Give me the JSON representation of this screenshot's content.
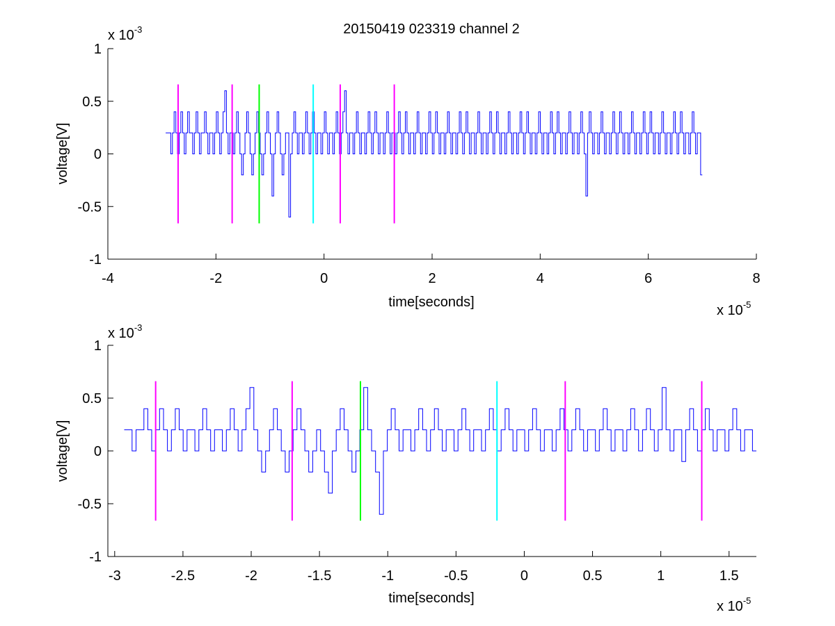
{
  "figure": {
    "title": "20150419 023319 channel 2"
  },
  "chart_data": [
    {
      "type": "line",
      "xlabel": "time[seconds]",
      "ylabel": "voltage[V]",
      "x_multiplier": "x 10",
      "x_exponent": "-5",
      "y_multiplier": "x 10",
      "y_exponent": "-3",
      "xlim": [
        -4,
        8
      ],
      "ylim": [
        -1,
        1
      ],
      "xticks": [
        -4,
        -2,
        0,
        2,
        4,
        6,
        8
      ],
      "xtick_labels": [
        "-4",
        "-2",
        "0",
        "2",
        "4",
        "6",
        "8"
      ],
      "yticks": [
        -1,
        -0.5,
        0,
        0.5,
        1
      ],
      "ytick_labels": [
        "-1",
        "-0.5",
        "0",
        "0.5",
        "1"
      ],
      "grid": false,
      "signal": {
        "color": "#0000ff",
        "x_range": [
          -2.93,
          7.0
        ],
        "values": [
          0.2,
          0.2,
          0.2,
          0.0,
          0.2,
          0.4,
          0.2,
          0.0,
          0.2,
          0.4,
          0.2,
          0.0,
          0.2,
          0.4,
          0.2,
          0.2,
          0.0,
          0.2,
          0.4,
          0.2,
          0.0,
          0.2,
          0.2,
          0.4,
          0.2,
          0.0,
          0.2,
          0.2,
          0.0,
          0.2,
          0.4,
          0.2,
          0.0,
          0.2,
          0.4,
          0.6,
          0.2,
          0.0,
          0.2,
          0.2,
          0.0,
          0.2,
          0.4,
          0.2,
          0.0,
          -0.2,
          0.0,
          0.2,
          0.4,
          0.2,
          0.0,
          -0.2,
          0.0,
          0.2,
          0.4,
          0.2,
          0.0,
          -0.2,
          0.0,
          0.2,
          0.4,
          0.2,
          0.0,
          -0.4,
          0.0,
          0.2,
          0.4,
          0.2,
          0.0,
          -0.2,
          0.0,
          0.2,
          0.2,
          -0.6,
          0.0,
          0.2,
          0.4,
          0.2,
          0.0,
          0.2,
          0.2,
          0.0,
          0.2,
          0.4,
          0.2,
          0.0,
          0.2,
          0.4,
          0.2,
          0.0,
          0.2,
          0.2,
          0.0,
          0.2,
          0.4,
          0.2,
          0.0,
          0.2,
          0.2,
          0.0,
          0.2,
          0.4,
          0.2,
          0.0,
          0.2,
          0.4,
          0.6,
          0.2,
          0.0,
          0.2,
          0.2,
          0.0,
          0.2,
          0.4,
          0.2,
          0.0,
          0.2,
          0.2,
          0.0,
          0.2,
          0.4,
          0.2,
          0.0,
          0.2,
          0.4,
          0.2,
          0.0,
          0.2,
          0.2,
          0.0,
          0.2,
          0.4,
          0.2,
          0.0,
          0.2,
          0.2,
          0.0,
          0.2,
          0.4,
          0.2,
          0.0,
          0.2,
          0.4,
          0.2,
          0.0,
          0.2,
          0.2,
          0.0,
          0.2,
          0.4,
          0.2,
          0.0,
          0.2,
          0.2,
          0.0,
          0.2,
          0.4,
          0.2,
          0.0,
          0.2,
          0.4,
          0.2,
          0.0,
          0.2,
          0.2,
          0.0,
          0.2,
          0.4,
          0.2,
          0.0,
          0.2,
          0.2,
          0.0,
          0.2,
          0.4,
          0.2,
          0.0,
          0.2,
          0.4,
          0.2,
          0.0,
          0.2,
          0.2,
          0.0,
          0.2,
          0.4,
          0.2,
          0.0,
          0.2,
          0.2,
          0.0,
          0.2,
          0.4,
          0.2,
          0.0,
          0.2,
          0.4,
          0.2,
          0.0,
          0.2,
          0.2,
          0.0,
          0.2,
          0.4,
          0.2,
          0.0,
          0.2,
          0.2,
          0.0,
          0.2,
          0.4,
          0.2,
          0.0,
          0.2,
          0.4,
          0.2,
          0.0,
          0.2,
          0.2,
          0.0,
          0.2,
          0.4,
          0.2,
          0.0,
          0.2,
          0.2,
          0.0,
          0.2,
          0.4,
          0.2,
          0.0,
          0.2,
          0.4,
          0.2,
          0.0,
          0.2,
          0.2,
          0.0,
          0.2,
          0.4,
          0.2,
          0.0,
          0.2,
          0.2,
          0.0,
          0.2,
          0.4,
          0.2,
          0.0,
          -0.4,
          0.2,
          0.4,
          0.2,
          0.0,
          0.2,
          0.2,
          0.0,
          0.2,
          0.4,
          0.2,
          0.0,
          0.2,
          0.2,
          0.0,
          0.2,
          0.4,
          0.2,
          0.0,
          0.2,
          0.4,
          0.2,
          0.0,
          0.2,
          0.2,
          0.0,
          0.2,
          0.4,
          0.2,
          0.0,
          0.2,
          0.2,
          0.0,
          0.2,
          0.4,
          0.2,
          0.0,
          0.2,
          0.4,
          0.2,
          0.0,
          0.2,
          0.2,
          0.0,
          0.2,
          0.4,
          0.2,
          0.0,
          0.2,
          0.2,
          0.0,
          0.2,
          0.4,
          0.2,
          0.0,
          0.2,
          0.4,
          0.2,
          0.0,
          0.2,
          0.2,
          0.0,
          0.2,
          0.4,
          0.2,
          0.0,
          0.2,
          0.2,
          -0.2
        ]
      },
      "markers": [
        {
          "x": -2.7,
          "color": "#ff00ff"
        },
        {
          "x": -1.7,
          "color": "#ff00ff"
        },
        {
          "x": -1.2,
          "color": "#00ff00"
        },
        {
          "x": -0.2,
          "color": "#00ffff"
        },
        {
          "x": 0.3,
          "color": "#ff00ff"
        },
        {
          "x": 1.3,
          "color": "#ff00ff"
        }
      ],
      "marker_y_range": [
        -0.66,
        0.66
      ]
    },
    {
      "type": "line",
      "xlabel": "time[seconds]",
      "ylabel": "voltage[V]",
      "x_multiplier": "x 10",
      "x_exponent": "-5",
      "y_multiplier": "x 10",
      "y_exponent": "-3",
      "xlim": [
        -3.05,
        1.7
      ],
      "ylim": [
        -1,
        1
      ],
      "xticks": [
        -3,
        -2.5,
        -2,
        -1.5,
        -1,
        -0.5,
        0,
        0.5,
        1,
        1.5
      ],
      "xtick_labels": [
        "-3",
        "-2.5",
        "-2",
        "-1.5",
        "-1",
        "-0.5",
        "0",
        "0.5",
        "1",
        "1.5"
      ],
      "yticks": [
        -1,
        -0.5,
        0,
        0.5,
        1
      ],
      "ytick_labels": [
        "-1",
        "-0.5",
        "0",
        "0.5",
        "1"
      ],
      "grid": false,
      "signal": {
        "color": "#0000ff",
        "x_range": [
          -2.93,
          1.7
        ],
        "values": [
          0.2,
          0.2,
          0.0,
          0.2,
          0.2,
          0.4,
          0.2,
          0.0,
          0.2,
          0.4,
          0.2,
          0.0,
          0.2,
          0.4,
          0.2,
          0.0,
          0.2,
          0.2,
          0.0,
          0.2,
          0.4,
          0.2,
          0.0,
          0.2,
          0.2,
          0.0,
          0.2,
          0.4,
          0.2,
          0.0,
          0.2,
          0.4,
          0.6,
          0.2,
          0.0,
          -0.2,
          0.0,
          0.2,
          0.4,
          0.2,
          0.0,
          -0.2,
          0.0,
          0.2,
          0.4,
          0.2,
          0.0,
          -0.2,
          0.0,
          0.2,
          0.0,
          -0.2,
          -0.4,
          0.0,
          0.2,
          0.4,
          0.2,
          0.0,
          -0.2,
          0.0,
          0.2,
          0.6,
          0.2,
          0.0,
          -0.2,
          -0.6,
          0.0,
          0.2,
          0.4,
          0.2,
          0.0,
          0.2,
          0.2,
          0.0,
          0.2,
          0.4,
          0.2,
          0.0,
          0.2,
          0.4,
          0.2,
          0.0,
          0.2,
          0.2,
          0.0,
          0.2,
          0.4,
          0.2,
          0.0,
          0.2,
          0.2,
          0.0,
          0.2,
          0.4,
          0.2,
          0.0,
          0.2,
          0.4,
          0.2,
          0.0,
          0.2,
          0.2,
          0.0,
          0.2,
          0.4,
          0.2,
          0.0,
          0.2,
          0.2,
          0.0,
          0.2,
          0.4,
          0.2,
          0.0,
          0.2,
          0.4,
          0.2,
          0.0,
          0.2,
          0.2,
          0.0,
          0.2,
          0.4,
          0.2,
          0.0,
          0.2,
          0.2,
          0.0,
          0.2,
          0.4,
          0.2,
          0.0,
          0.2,
          0.4,
          0.2,
          0.0,
          0.2,
          0.6,
          0.2,
          0.0,
          0.2,
          0.2,
          -0.1,
          0.2,
          0.4,
          0.2,
          0.0,
          0.2,
          0.4,
          0.2,
          0.0,
          0.2,
          0.2,
          0.0,
          0.2,
          0.4,
          0.2,
          0.0,
          0.2,
          0.2,
          0.0
        ]
      },
      "markers": [
        {
          "x": -2.7,
          "color": "#ff00ff"
        },
        {
          "x": -1.7,
          "color": "#ff00ff"
        },
        {
          "x": -1.2,
          "color": "#00ff00"
        },
        {
          "x": -0.2,
          "color": "#00ffff"
        },
        {
          "x": 0.3,
          "color": "#ff00ff"
        },
        {
          "x": 1.3,
          "color": "#ff00ff"
        }
      ],
      "marker_y_range": [
        -0.66,
        0.66
      ]
    }
  ]
}
